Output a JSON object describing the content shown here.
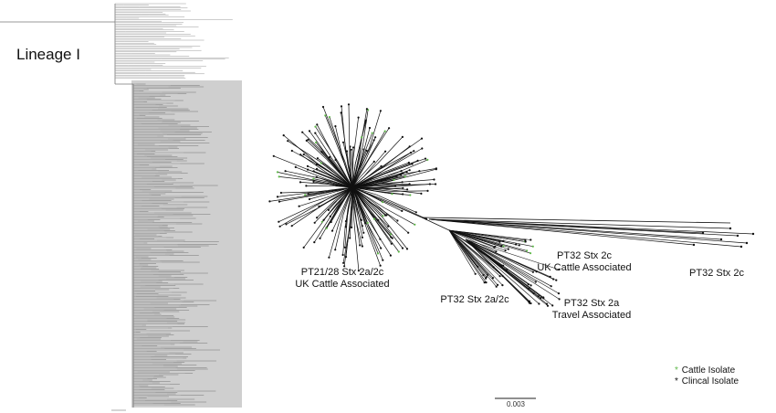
{
  "lineage_label": "Lineage I",
  "clade_labels": [
    {
      "lines": [
        "PT21/28 Stx 2a/2c",
        "UK Cattle Associated"
      ]
    },
    {
      "lines": [
        "PT32 Stx 2a/2c"
      ]
    },
    {
      "lines": [
        "PT32 Stx 2c",
        "UK Cattle Associated"
      ]
    },
    {
      "lines": [
        "PT32 Stx 2c"
      ]
    },
    {
      "lines": [
        "PT32 Stx 2a",
        "Travel Associated"
      ]
    }
  ],
  "legend": [
    {
      "symbol": "*",
      "label": "Cattle Isolate",
      "color": "#5fb84a"
    },
    {
      "symbol": "*",
      "label": "Clincal Isolate",
      "color": "#111111"
    }
  ],
  "scale_bar_label": "0.003",
  "colors": {
    "highlight_box": "#cfcfcf",
    "branch": "#111111",
    "cattle_tip": "#5fb84a",
    "clinical_tip": "#111111"
  }
}
